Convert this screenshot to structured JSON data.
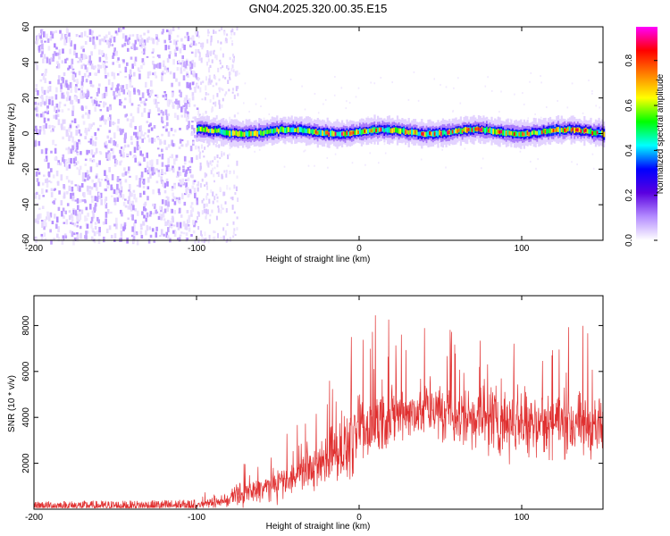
{
  "title": "GN04.2025.320.00.35.E15",
  "chart_data": [
    {
      "type": "heatmap",
      "xlabel": "Height of straight line (km)",
      "ylabel": "Frequency (Hz)",
      "xlim": [
        -200,
        150
      ],
      "ylim": [
        -60,
        60
      ],
      "xticks": [
        -200,
        -100,
        0,
        100
      ],
      "yticks": [
        -60,
        -40,
        -20,
        0,
        20,
        40,
        60
      ],
      "colorbar": {
        "label": "Normalized spectral amplitude",
        "range": [
          0.0,
          0.95
        ],
        "ticks": [
          0.0,
          0.2,
          0.4,
          0.6,
          0.8
        ],
        "colormap": [
          "#ffffff",
          "#b48cff",
          "#5a00e0",
          "#0000ff",
          "#00ffff",
          "#00ff00",
          "#ffff00",
          "#ff8000",
          "#ff0000",
          "#ff00ff"
        ]
      },
      "regions": [
        {
          "name": "broadband noise",
          "x_range": [
            -200,
            -100
          ],
          "freq_range": [
            -60,
            60
          ],
          "amplitude": 0.05
        },
        {
          "name": "sparse noise",
          "x_range": [
            -100,
            -75
          ],
          "freq_range": [
            -60,
            60
          ],
          "amplitude": 0.03
        },
        {
          "name": "narrowband signal",
          "x_range": [
            -100,
            150
          ],
          "center_freq": 1,
          "bandwidth": 10,
          "peak_amplitude": 0.9
        }
      ]
    },
    {
      "type": "line",
      "color": "#e03030",
      "xlabel": "Height of straight line (km)",
      "ylabel": "SNR (10 * v/v)",
      "xlim": [
        -200,
        150
      ],
      "ylim": [
        0,
        9300
      ],
      "xticks": [
        -200,
        -100,
        0,
        100
      ],
      "yticks": [
        2000,
        4000,
        6000,
        8000
      ],
      "envelope": {
        "x": [
          -200,
          -150,
          -100,
          -90,
          -80,
          -70,
          -60,
          -50,
          -40,
          -30,
          -20,
          -10,
          0,
          10,
          20,
          30,
          40,
          50,
          60,
          80,
          100,
          120,
          140,
          150
        ],
        "mean": [
          150,
          150,
          180,
          260,
          400,
          650,
          900,
          1100,
          1400,
          1700,
          2100,
          2600,
          3200,
          3700,
          4000,
          4200,
          4300,
          4200,
          4100,
          4000,
          3900,
          3700,
          3600,
          3500
        ],
        "max": [
          400,
          420,
          480,
          1000,
          1400,
          2200,
          2700,
          3300,
          3700,
          4400,
          5400,
          7000,
          8200,
          8600,
          8400,
          8000,
          8400,
          8300,
          8600,
          9200,
          8700,
          8300,
          8100,
          7600
        ]
      }
    }
  ]
}
